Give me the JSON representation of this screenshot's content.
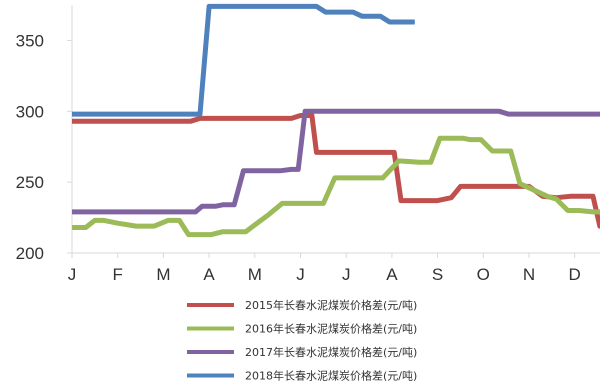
{
  "chart_data": {
    "type": "line",
    "categories": [
      "J",
      "F",
      "M",
      "A",
      "M",
      "J",
      "J",
      "A",
      "S",
      "O",
      "N",
      "D"
    ],
    "ylim": [
      200,
      375
    ],
    "yticks": [
      200,
      250,
      300,
      350
    ],
    "grid": false,
    "legend_position": "bottom",
    "series": [
      {
        "name": "2015年长春水泥煤炭价格差(元/吨)",
        "color": "#c0504d",
        "points": [
          [
            0,
            293
          ],
          [
            2.6,
            293
          ],
          [
            2.8,
            295
          ],
          [
            4.8,
            295
          ],
          [
            5.0,
            297
          ],
          [
            5.25,
            297
          ],
          [
            5.35,
            271
          ],
          [
            6.05,
            271
          ],
          [
            6.9,
            271
          ],
          [
            7.05,
            271
          ],
          [
            7.2,
            237
          ],
          [
            8.0,
            237
          ],
          [
            8.3,
            239
          ],
          [
            8.5,
            247
          ],
          [
            10.0,
            247
          ],
          [
            10.3,
            240
          ],
          [
            10.6,
            239
          ],
          [
            10.9,
            240
          ],
          [
            11.4,
            240
          ],
          [
            11.55,
            219
          ],
          [
            11.8,
            219
          ]
        ]
      },
      {
        "name": "2016年长春水泥煤炭价格差(元/吨)",
        "color": "#9bbb59",
        "points": [
          [
            0,
            218
          ],
          [
            0.3,
            218
          ],
          [
            0.5,
            223
          ],
          [
            0.7,
            223
          ],
          [
            1.0,
            221
          ],
          [
            1.4,
            219
          ],
          [
            1.8,
            219
          ],
          [
            2.1,
            223
          ],
          [
            2.35,
            223
          ],
          [
            2.55,
            213
          ],
          [
            3.05,
            213
          ],
          [
            3.3,
            215
          ],
          [
            3.8,
            215
          ],
          [
            4.3,
            227
          ],
          [
            4.6,
            235
          ],
          [
            5.5,
            235
          ],
          [
            5.75,
            253
          ],
          [
            6.8,
            253
          ],
          [
            7.15,
            265
          ],
          [
            7.6,
            264
          ],
          [
            7.85,
            264
          ],
          [
            8.05,
            281
          ],
          [
            8.55,
            281
          ],
          [
            8.7,
            280
          ],
          [
            8.95,
            280
          ],
          [
            9.2,
            272
          ],
          [
            9.6,
            272
          ],
          [
            9.8,
            249
          ],
          [
            10.0,
            246
          ],
          [
            10.4,
            240
          ],
          [
            10.6,
            238
          ],
          [
            10.85,
            230
          ],
          [
            11.1,
            230
          ],
          [
            11.4,
            229
          ],
          [
            11.8,
            229
          ]
        ]
      },
      {
        "name": "2017年长春水泥煤炭价格差(元/吨)",
        "color": "#8064a2",
        "points": [
          [
            0,
            229
          ],
          [
            2.7,
            229
          ],
          [
            2.85,
            233
          ],
          [
            3.15,
            233
          ],
          [
            3.3,
            234
          ],
          [
            3.55,
            234
          ],
          [
            3.75,
            258
          ],
          [
            4.55,
            258
          ],
          [
            4.8,
            259
          ],
          [
            4.95,
            259
          ],
          [
            5.1,
            300
          ],
          [
            9.35,
            300
          ],
          [
            9.55,
            298
          ],
          [
            11.8,
            298
          ]
        ]
      },
      {
        "name": "2018年长春水泥煤炭价格差(元/吨)",
        "color": "#4f81bd",
        "points": [
          [
            0,
            298
          ],
          [
            2.8,
            298
          ],
          [
            3.0,
            374
          ],
          [
            5.35,
            374
          ],
          [
            5.55,
            370
          ],
          [
            6.15,
            370
          ],
          [
            6.35,
            367
          ],
          [
            6.75,
            367
          ],
          [
            6.95,
            363
          ],
          [
            7.5,
            363
          ]
        ]
      }
    ]
  }
}
